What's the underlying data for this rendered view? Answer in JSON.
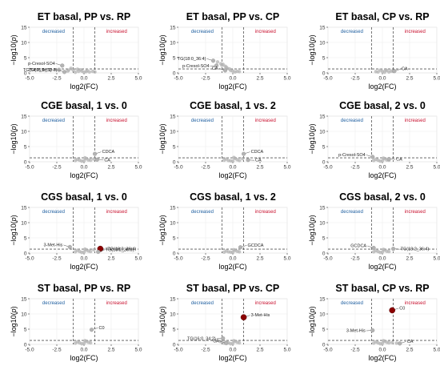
{
  "figure": {
    "xlabel_prefix": "log2(FC)",
    "ylabel_text": "−log10(",
    "ylabel_p": "p",
    "ylabel_close": ")",
    "decreased_label": "decreased",
    "increased_label": "increased",
    "colors": {
      "point": "#b3b3b3",
      "sig": "#8b0000",
      "decreased": "#1f5fa0",
      "increased": "#c8102e",
      "grid": "#ececec",
      "dashed": "#555555"
    }
  },
  "chart_data": [
    {
      "type": "scatter",
      "title": "ET basal, PP vs. RP",
      "xlim": [
        -5,
        5
      ],
      "ylim": [
        0,
        15
      ],
      "xticks": [
        -5.0,
        -2.5,
        0.0,
        2.5,
        5.0
      ],
      "yticks": [
        0,
        5,
        10,
        15
      ],
      "vlines": [
        -1,
        1
      ],
      "hline": 1.3,
      "cloud": [
        [
          -1.0,
          0.9
        ],
        [
          0.2,
          0.4
        ],
        [
          -0.5,
          0.5
        ],
        [
          0.5,
          0.3
        ],
        [
          -1.5,
          0.6
        ],
        [
          0.0,
          0.2
        ],
        [
          -0.3,
          1.0
        ],
        [
          1.0,
          0.3
        ],
        [
          -1.2,
          1.5
        ],
        [
          0.8,
          0.5
        ],
        [
          -0.8,
          0.2
        ],
        [
          -1.4,
          0.9
        ],
        [
          -0.2,
          0.6
        ],
        [
          0.3,
          0.8
        ],
        [
          -0.6,
          1.2
        ]
      ],
      "points": [
        {
          "x": -2.0,
          "y": 2.4,
          "label": "p-Cresol-SO4",
          "sig": false
        },
        {
          "x": -2.3,
          "y": 1.0,
          "label": "TG(14:0_34:1)",
          "sig": false
        },
        {
          "x": -1.8,
          "y": 0.3,
          "label": "TG(16:0_32:3)",
          "sig": false
        }
      ]
    },
    {
      "type": "scatter",
      "title": "ET basal, PP vs. CP",
      "xlim": [
        -5,
        5
      ],
      "ylim": [
        0,
        15
      ],
      "xticks": [
        -5.0,
        -2.5,
        0.0,
        2.5,
        5.0
      ],
      "yticks": [
        0,
        5,
        10,
        15
      ],
      "vlines": [
        -1,
        1
      ],
      "hline": 1.3,
      "cloud": [
        [
          -0.7,
          2.2
        ],
        [
          -1.1,
          3.0
        ],
        [
          -0.5,
          1.5
        ],
        [
          0.0,
          0.6
        ],
        [
          0.4,
          0.5
        ],
        [
          -0.9,
          2.8
        ],
        [
          -0.3,
          1.3
        ],
        [
          -1.4,
          3.6
        ],
        [
          0.2,
          0.3
        ],
        [
          -0.6,
          1.9
        ],
        [
          0.6,
          0.4
        ],
        [
          -0.2,
          0.8
        ],
        [
          -1.0,
          2.5
        ]
      ],
      "points": [
        {
          "x": -1.8,
          "y": 4.0,
          "label": "TG(18:0_36:4)",
          "sig": false
        },
        {
          "x": -1.5,
          "y": 2.4,
          "label": "p-Cresol-SO4",
          "sig": false
        },
        {
          "x": -0.7,
          "y": 0.8,
          "label": "CA",
          "sig": false
        }
      ]
    },
    {
      "type": "scatter",
      "title": "ET basal, CP vs. RP",
      "xlim": [
        -5,
        5
      ],
      "ylim": [
        0,
        15
      ],
      "xticks": [
        -5.0,
        -2.5,
        0.0,
        2.5,
        5.0
      ],
      "yticks": [
        0,
        5,
        10,
        15
      ],
      "vlines": [
        -1,
        1
      ],
      "hline": 1.3,
      "cloud": [
        [
          0.0,
          0.5
        ],
        [
          0.4,
          0.8
        ],
        [
          -0.4,
          0.3
        ],
        [
          0.8,
          0.6
        ],
        [
          0.2,
          0.2
        ],
        [
          -0.2,
          0.9
        ],
        [
          0.6,
          0.3
        ],
        [
          1.0,
          0.5
        ],
        [
          -0.6,
          0.4
        ],
        [
          0.3,
          1.0
        ]
      ],
      "points": [
        {
          "x": 1.1,
          "y": 0.6,
          "label": "CA",
          "sig": false
        }
      ]
    },
    {
      "type": "scatter",
      "title": "CGE basal, 1 vs. 0",
      "xlim": [
        -5,
        5
      ],
      "ylim": [
        0,
        15
      ],
      "xticks": [
        -5.0,
        -2.5,
        0.0,
        2.5,
        5.0
      ],
      "yticks": [
        0,
        5,
        10,
        15
      ],
      "vlines": [
        -1,
        1
      ],
      "hline": 1.3,
      "cloud": [
        [
          -0.4,
          0.5
        ],
        [
          0.0,
          0.3
        ],
        [
          0.4,
          0.6
        ],
        [
          -0.8,
          0.4
        ],
        [
          0.2,
          1.0
        ],
        [
          -0.2,
          0.2
        ],
        [
          0.6,
          0.5
        ],
        [
          0.9,
          0.9
        ],
        [
          -0.6,
          0.8
        ],
        [
          0.1,
          1.3
        ]
      ],
      "points": [
        {
          "x": 1.0,
          "y": 2.6,
          "label": "CDCA",
          "sig": false
        },
        {
          "x": 1.2,
          "y": 0.7,
          "label": "CA",
          "sig": false
        }
      ]
    },
    {
      "type": "scatter",
      "title": "CGE basal, 1 vs. 2",
      "xlim": [
        -5,
        5
      ],
      "ylim": [
        0,
        15
      ],
      "xticks": [
        -5.0,
        -2.5,
        0.0,
        2.5,
        5.0
      ],
      "yticks": [
        0,
        5,
        10,
        15
      ],
      "vlines": [
        -1,
        1
      ],
      "hline": 1.3,
      "cloud": [
        [
          -0.4,
          0.4
        ],
        [
          0.0,
          0.2
        ],
        [
          0.4,
          0.7
        ],
        [
          -0.8,
          0.5
        ],
        [
          0.2,
          1.1
        ],
        [
          -0.2,
          0.3
        ],
        [
          0.6,
          0.4
        ],
        [
          0.9,
          1.0
        ],
        [
          -0.6,
          0.9
        ],
        [
          0.1,
          1.4
        ]
      ],
      "points": [
        {
          "x": 1.0,
          "y": 2.6,
          "label": "CDCA",
          "sig": false
        },
        {
          "x": 1.4,
          "y": 0.6,
          "label": "CA",
          "sig": false
        }
      ]
    },
    {
      "type": "scatter",
      "title": "CGE basal, 2 vs. 0",
      "xlim": [
        -5,
        5
      ],
      "ylim": [
        0,
        15
      ],
      "xticks": [
        -5.0,
        -2.5,
        0.0,
        2.5,
        5.0
      ],
      "yticks": [
        0,
        5,
        10,
        15
      ],
      "vlines": [
        -1,
        1
      ],
      "hline": 1.3,
      "cloud": [
        [
          -0.4,
          0.5
        ],
        [
          0.0,
          0.3
        ],
        [
          0.4,
          0.6
        ],
        [
          -0.8,
          0.4
        ],
        [
          0.2,
          1.0
        ],
        [
          -0.2,
          0.2
        ],
        [
          0.6,
          0.5
        ],
        [
          -0.6,
          0.8
        ],
        [
          0.1,
          1.2
        ]
      ],
      "points": [
        {
          "x": -0.9,
          "y": 1.6,
          "label": "p-Cresol-SO4",
          "sig": false
        },
        {
          "x": 0.6,
          "y": 0.9,
          "label": "CA",
          "sig": false
        }
      ]
    },
    {
      "type": "scatter",
      "title": "CGS basal, 1 vs. 0",
      "xlim": [
        -5,
        5
      ],
      "ylim": [
        0,
        15
      ],
      "xticks": [
        -5.0,
        -2.5,
        0.0,
        2.5,
        5.0
      ],
      "yticks": [
        0,
        5,
        10,
        15
      ],
      "vlines": [
        -1,
        1
      ],
      "hline": 1.3,
      "cloud": [
        [
          -0.4,
          0.5
        ],
        [
          0.0,
          0.3
        ],
        [
          0.4,
          0.7
        ],
        [
          -0.8,
          0.4
        ],
        [
          0.2,
          1.0
        ],
        [
          -0.2,
          0.2
        ],
        [
          0.6,
          0.5
        ],
        [
          0.9,
          1.1
        ],
        [
          -0.6,
          0.9
        ],
        [
          0.1,
          1.3
        ]
      ],
      "points": [
        {
          "x": -1.3,
          "y": 2.0,
          "label": "3-Met-His",
          "sig": false
        },
        {
          "x": 1.5,
          "y": 1.4,
          "label": "TG(18:2_36:4)",
          "sig": true
        },
        {
          "x": 1.3,
          "y": 0.4,
          "label": "TG(18:2_36:3)",
          "sig": false
        }
      ]
    },
    {
      "type": "scatter",
      "title": "CGS basal, 1 vs. 2",
      "xlim": [
        -5,
        5
      ],
      "ylim": [
        0,
        15
      ],
      "xticks": [
        -5.0,
        -2.5,
        0.0,
        2.5,
        5.0
      ],
      "yticks": [
        0,
        5,
        10,
        15
      ],
      "vlines": [
        -1,
        1
      ],
      "hline": 1.3,
      "cloud": [
        [
          -0.4,
          0.4
        ],
        [
          0.0,
          0.2
        ],
        [
          0.4,
          0.6
        ],
        [
          -0.8,
          0.3
        ],
        [
          0.2,
          0.9
        ],
        [
          -0.2,
          0.3
        ],
        [
          0.6,
          0.4
        ],
        [
          -0.6,
          0.7
        ],
        [
          0.1,
          1.1
        ]
      ],
      "points": [
        {
          "x": 0.7,
          "y": 1.9,
          "label": "GCDCA",
          "sig": false
        }
      ]
    },
    {
      "type": "scatter",
      "title": "CGS basal, 2 vs. 0",
      "xlim": [
        -5,
        5
      ],
      "ylim": [
        0,
        15
      ],
      "xticks": [
        -5.0,
        -2.5,
        0.0,
        2.5,
        5.0
      ],
      "yticks": [
        0,
        5,
        10,
        15
      ],
      "vlines": [
        -1,
        1
      ],
      "hline": 1.3,
      "cloud": [
        [
          -0.4,
          0.5
        ],
        [
          0.0,
          0.3
        ],
        [
          0.4,
          0.6
        ],
        [
          -0.8,
          0.4
        ],
        [
          0.2,
          1.0
        ],
        [
          -0.2,
          0.2
        ],
        [
          0.6,
          0.5
        ],
        [
          -0.6,
          0.8
        ],
        [
          0.1,
          1.2
        ]
      ],
      "points": [
        {
          "x": -0.8,
          "y": 1.7,
          "label": "GCDCA",
          "sig": false
        },
        {
          "x": 1.0,
          "y": 1.4,
          "label": "TG(18:2_36:4)",
          "sig": false
        }
      ]
    },
    {
      "type": "scatter",
      "title": "ST basal, PP vs. RP",
      "xlim": [
        -5,
        5
      ],
      "ylim": [
        0,
        15
      ],
      "xticks": [
        -5.0,
        -2.5,
        0.0,
        2.5,
        5.0
      ],
      "yticks": [
        0,
        5,
        10,
        15
      ],
      "vlines": [
        -1,
        1
      ],
      "hline": 1.3,
      "cloud": [
        [
          -0.4,
          0.5
        ],
        [
          0.0,
          0.3
        ],
        [
          0.4,
          0.7
        ],
        [
          -0.8,
          0.4
        ],
        [
          0.2,
          1.0
        ],
        [
          -0.2,
          0.2
        ],
        [
          0.6,
          0.5
        ],
        [
          -0.6,
          0.8
        ],
        [
          0.1,
          1.2
        ]
      ],
      "points": [
        {
          "x": 0.7,
          "y": 4.8,
          "label": "C0",
          "sig": false
        }
      ]
    },
    {
      "type": "scatter",
      "title": "ST basal, PP vs. CP",
      "xlim": [
        -5,
        5
      ],
      "ylim": [
        0,
        15
      ],
      "xticks": [
        -5.0,
        -2.5,
        0.0,
        2.5,
        5.0
      ],
      "yticks": [
        0,
        5,
        10,
        15
      ],
      "vlines": [
        -1,
        1
      ],
      "hline": 1.3,
      "cloud": [
        [
          -0.4,
          0.5
        ],
        [
          0.0,
          0.3
        ],
        [
          0.4,
          0.7
        ],
        [
          -0.8,
          0.4
        ],
        [
          0.2,
          1.0
        ],
        [
          -0.2,
          0.2
        ],
        [
          0.6,
          0.5
        ],
        [
          -0.6,
          0.8
        ],
        [
          0.1,
          1.2
        ],
        [
          -1.1,
          0.9
        ]
      ],
      "points": [
        {
          "x": 1.0,
          "y": 8.9,
          "label": "3-Met-His",
          "sig": true
        },
        {
          "x": -0.9,
          "y": 2.0,
          "label": "TG(16:0_34:2)",
          "sig": false
        },
        {
          "x": -0.6,
          "y": 0.4,
          "label": "CA",
          "sig": false
        }
      ]
    },
    {
      "type": "scatter",
      "title": "ST basal, CP vs. RP",
      "xlim": [
        -5,
        5
      ],
      "ylim": [
        0,
        15
      ],
      "xticks": [
        -5.0,
        -2.5,
        0.0,
        2.5,
        5.0
      ],
      "yticks": [
        0,
        5,
        10,
        15
      ],
      "vlines": [
        -1,
        1
      ],
      "hline": 1.3,
      "cloud": [
        [
          -0.4,
          0.5
        ],
        [
          0.0,
          0.3
        ],
        [
          0.4,
          0.7
        ],
        [
          -0.8,
          0.4
        ],
        [
          0.2,
          1.0
        ],
        [
          -0.2,
          0.2
        ],
        [
          0.6,
          0.5
        ],
        [
          0.9,
          0.6
        ],
        [
          -0.6,
          0.8
        ],
        [
          0.1,
          1.2
        ],
        [
          1.3,
          0.4
        ]
      ],
      "points": [
        {
          "x": 0.9,
          "y": 11.2,
          "label": "C0",
          "sig": true
        },
        {
          "x": -0.9,
          "y": 4.6,
          "label": "3-Met-His",
          "sig": false
        },
        {
          "x": 1.6,
          "y": 0.3,
          "label": "CA",
          "sig": false
        }
      ]
    }
  ]
}
